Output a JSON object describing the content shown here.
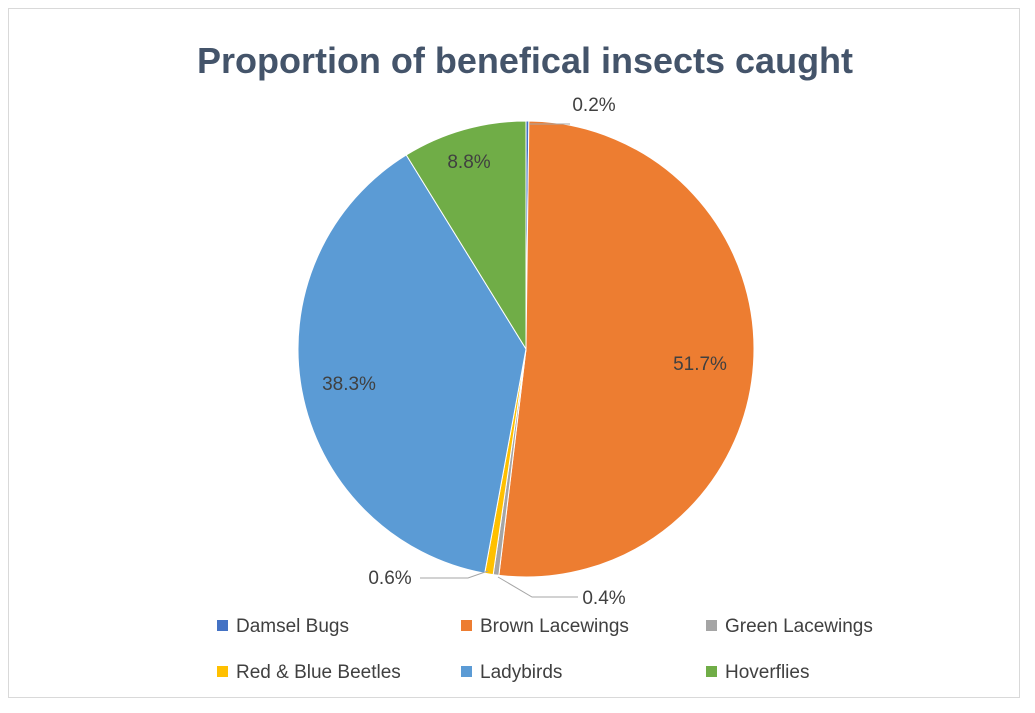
{
  "chart_data": {
    "type": "pie",
    "title": "Proportion of benefical insects caught",
    "slices": [
      {
        "name": "Damsel Bugs",
        "value": 0.2,
        "label": "0.2%",
        "color": "#4472c4"
      },
      {
        "name": "Brown Lacewings",
        "value": 51.7,
        "label": "51.7%",
        "color": "#ed7d31"
      },
      {
        "name": "Green Lacewings",
        "value": 0.4,
        "label": "0.4%",
        "color": "#a5a5a5"
      },
      {
        "name": "Red & Blue Beetles",
        "value": 0.6,
        "label": "0.6%",
        "color": "#ffc000"
      },
      {
        "name": "Ladybirds",
        "value": 38.3,
        "label": "38.3%",
        "color": "#5b9bd5"
      },
      {
        "name": "Hoverflies",
        "value": 8.8,
        "label": "8.8%",
        "color": "#70ad47"
      }
    ],
    "legend_position": "bottom"
  }
}
